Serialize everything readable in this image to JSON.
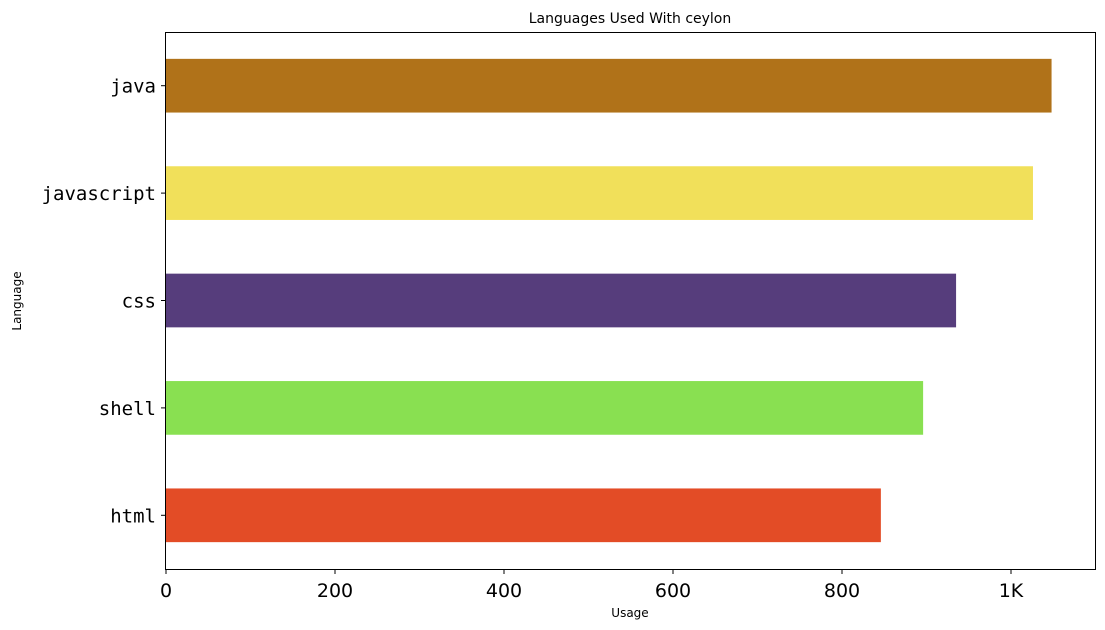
{
  "chart_data": {
    "type": "bar",
    "orientation": "horizontal",
    "title": "Languages Used With ceylon",
    "xlabel": "Usage",
    "ylabel": "Language",
    "categories": [
      "java",
      "javascript",
      "css",
      "shell",
      "html"
    ],
    "values": [
      1048,
      1026,
      935,
      896,
      846
    ],
    "colors": [
      "#b07219",
      "#f1e05a",
      "#563d7c",
      "#89e051",
      "#e34c26"
    ],
    "xlim": [
      0,
      1100
    ],
    "xticks": [
      0,
      200,
      400,
      600,
      800,
      1000
    ],
    "xtick_labels": [
      "0",
      "200",
      "400",
      "600",
      "800",
      "1K"
    ],
    "grid": false,
    "legend": "none"
  }
}
